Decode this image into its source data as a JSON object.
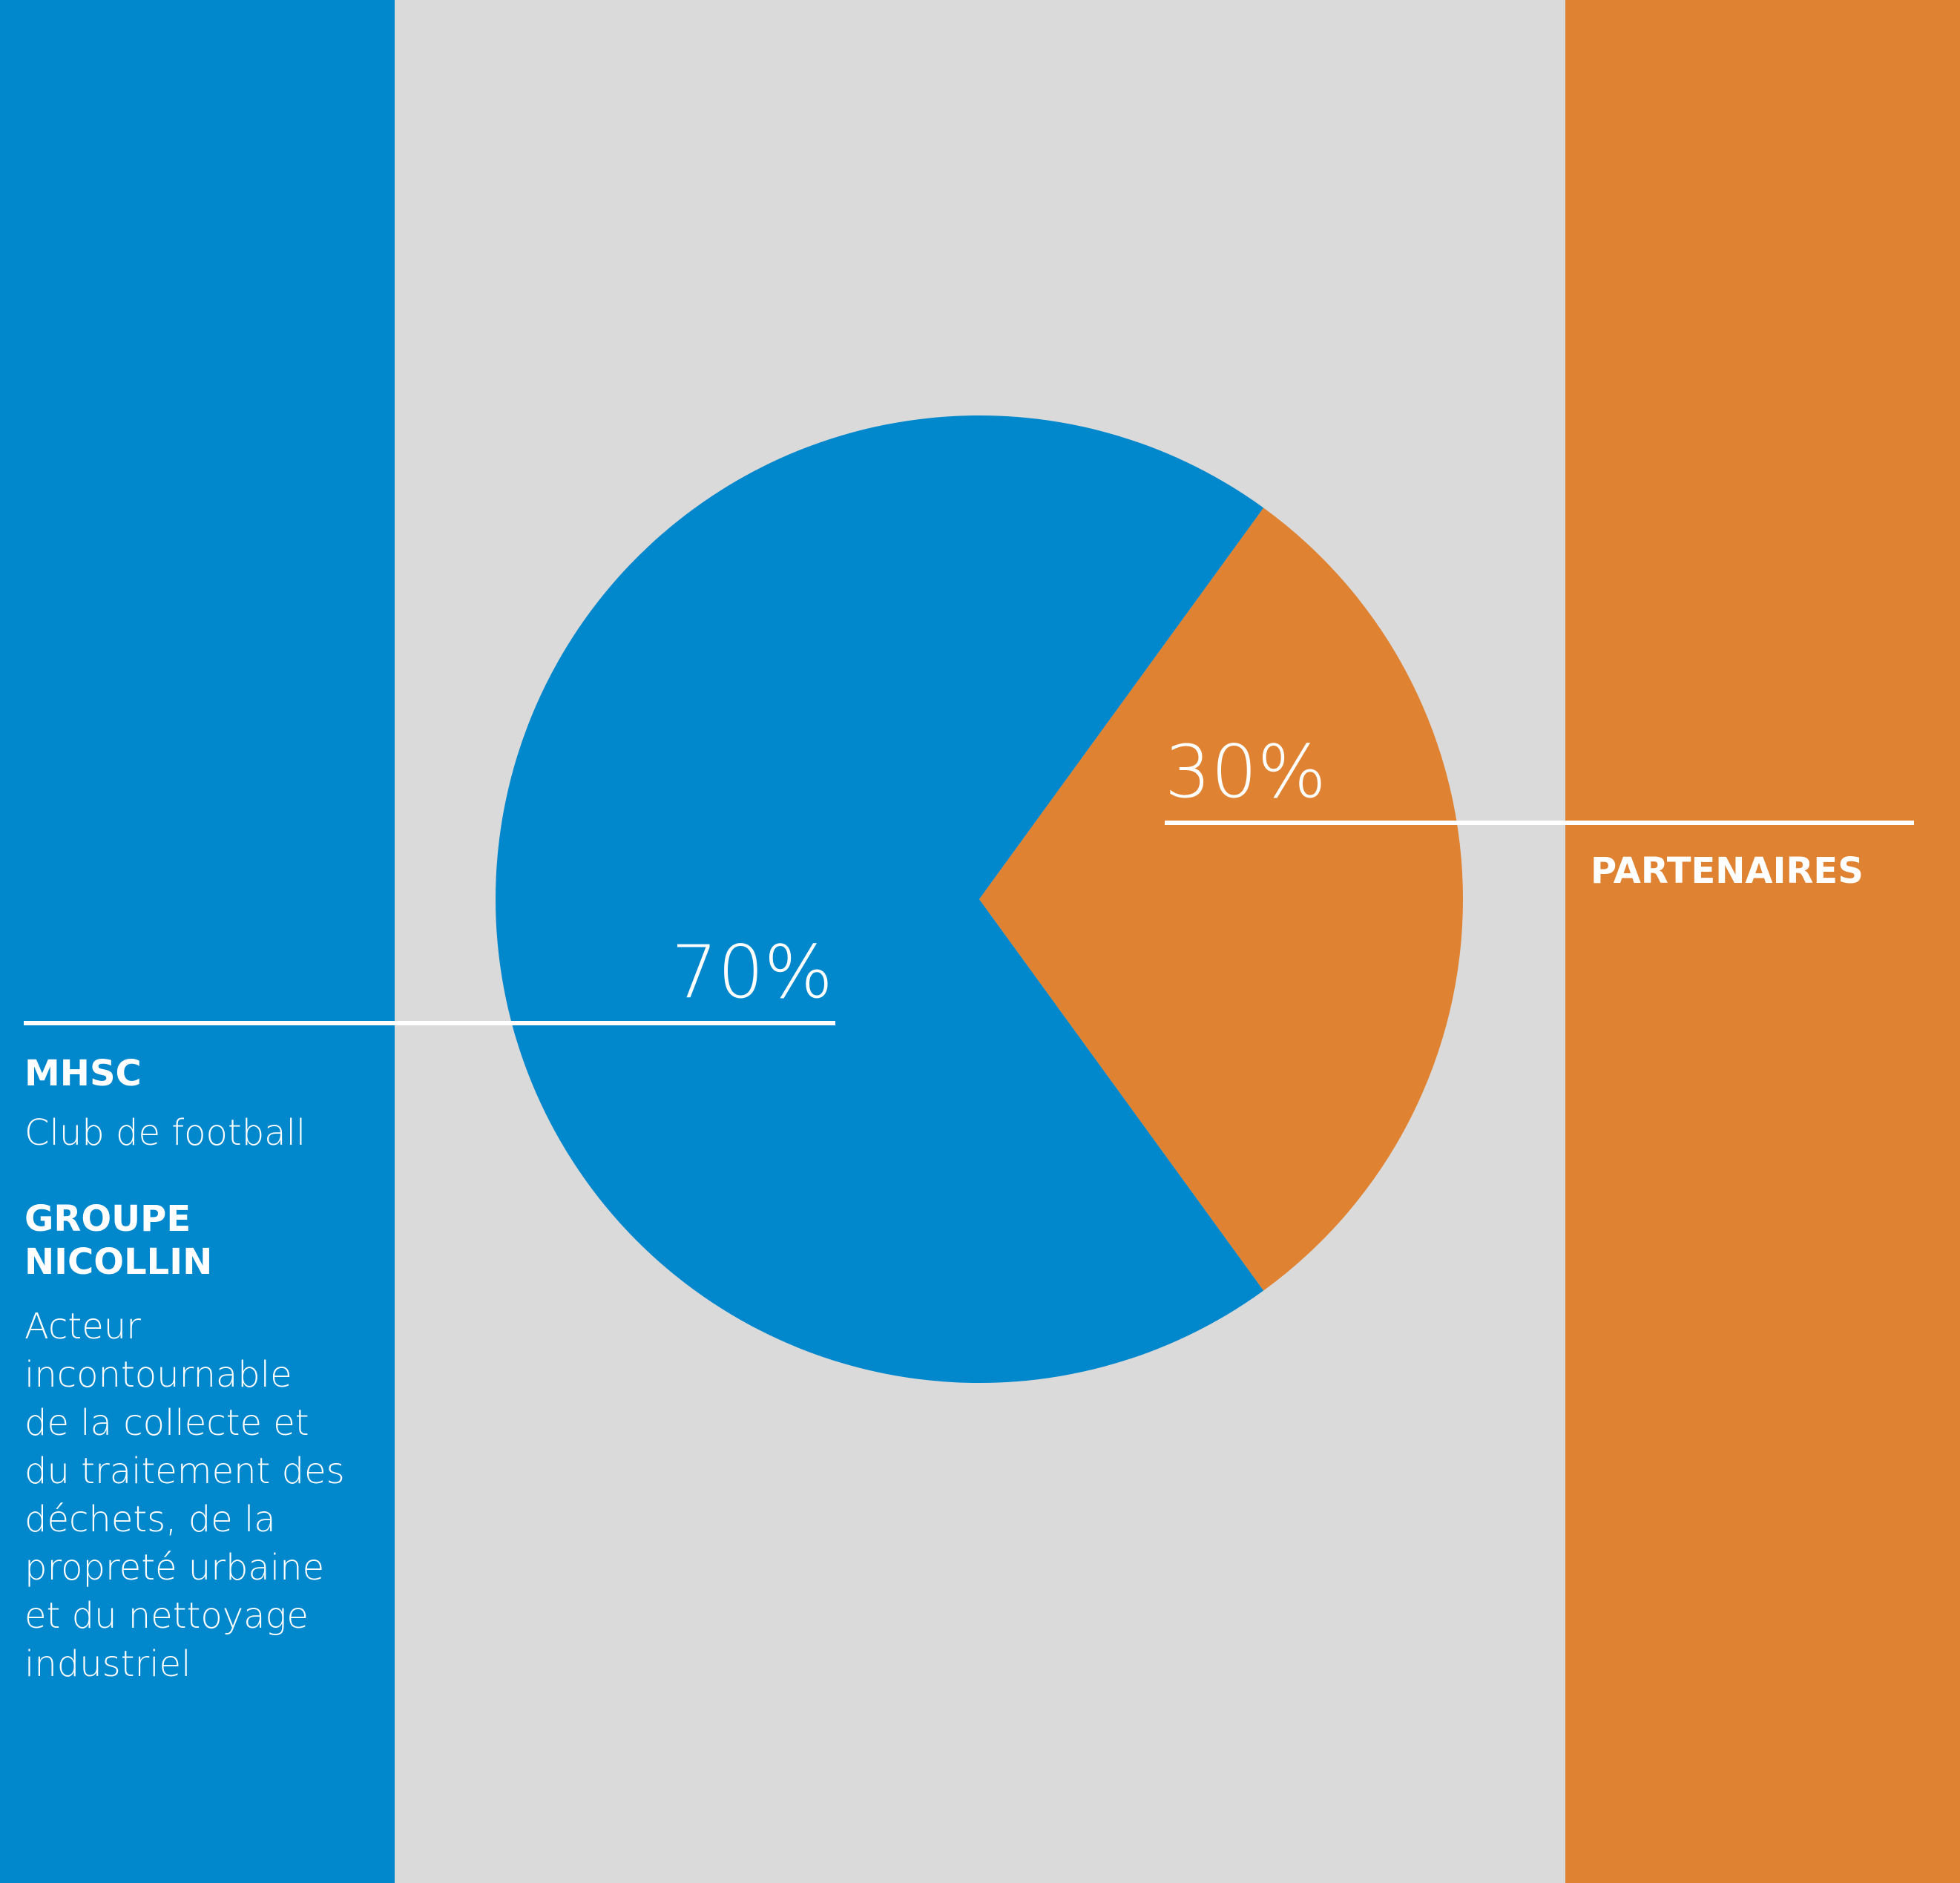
{
  "colors": {
    "blue": "#0087CC",
    "orange": "#DF8231",
    "grey": "#DADADA",
    "white": "#FFFFFF"
  },
  "chart_data": {
    "type": "pie",
    "title": "",
    "slices": [
      {
        "label": "MHSC / GROUPE NICOLLIN",
        "value": 70,
        "display": "70%",
        "color": "#0087CC"
      },
      {
        "label": "PARTENAIRES",
        "value": 30,
        "display": "30%",
        "color": "#DF8231"
      }
    ]
  },
  "legend": {
    "mhsc_title": "MHSC",
    "mhsc_desc": "Club de football",
    "nicollin_title": "GROUPE\nNICOLLIN",
    "nicollin_desc": "Acteur\nincontournable\nde la  collecte et\ndu traitement des\ndéchets, de la\npropreté urbaine\net du nettoyage\nindustriel",
    "partners_title": "PARTENAIRES"
  }
}
